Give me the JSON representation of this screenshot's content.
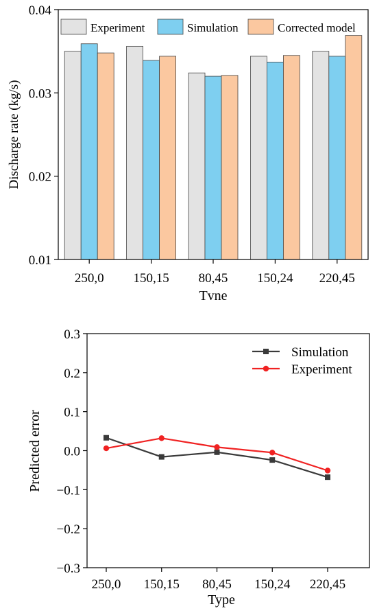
{
  "chart_data": [
    {
      "type": "bar",
      "xlabel": "Tvne",
      "ylabel": "Discharge rate (kg/s)",
      "ylim": [
        0.01,
        0.04
      ],
      "yticks": [
        "0.01",
        "0.02",
        "0.03",
        "0.04"
      ],
      "ytick_values": [
        0.01,
        0.02,
        0.03,
        0.04
      ],
      "categories": [
        "250,0",
        "150,15",
        "80,45",
        "150,24",
        "220,45"
      ],
      "legend_position": "top",
      "series": [
        {
          "name": "Experiment",
          "color": "#e3e3e3",
          "values": [
            0.035,
            0.0356,
            0.0324,
            0.0344,
            0.035
          ]
        },
        {
          "name": "Simulation",
          "color": "#7ecff0",
          "values": [
            0.0359,
            0.0339,
            0.032,
            0.0337,
            0.0344
          ]
        },
        {
          "name": "Corrected model",
          "color": "#fbc8a0",
          "values": [
            0.0348,
            0.0344,
            0.0321,
            0.0345,
            0.0369
          ]
        }
      ]
    },
    {
      "type": "line",
      "xlabel": "Type",
      "ylabel": "Predicted error",
      "ylim": [
        -0.3,
        0.3
      ],
      "yticks": [
        "0.3",
        "0.2",
        "0.1",
        "0.0",
        "−0.1",
        "−0.2",
        "−0.3"
      ],
      "ytick_values": [
        0.3,
        0.2,
        0.1,
        0.0,
        -0.1,
        -0.2,
        -0.3
      ],
      "categories": [
        "250,0",
        "150,15",
        "80,45",
        "150,24",
        "220,45"
      ],
      "legend_position": "top-right",
      "series": [
        {
          "name": "Simulation",
          "color": "#3a3a3a",
          "marker": "square",
          "values": [
            0.033,
            -0.016,
            -0.004,
            -0.024,
            -0.068
          ]
        },
        {
          "name": "Experiment",
          "color": "#f02222",
          "marker": "circle",
          "values": [
            0.006,
            0.032,
            0.009,
            -0.005,
            -0.051
          ]
        }
      ]
    }
  ]
}
